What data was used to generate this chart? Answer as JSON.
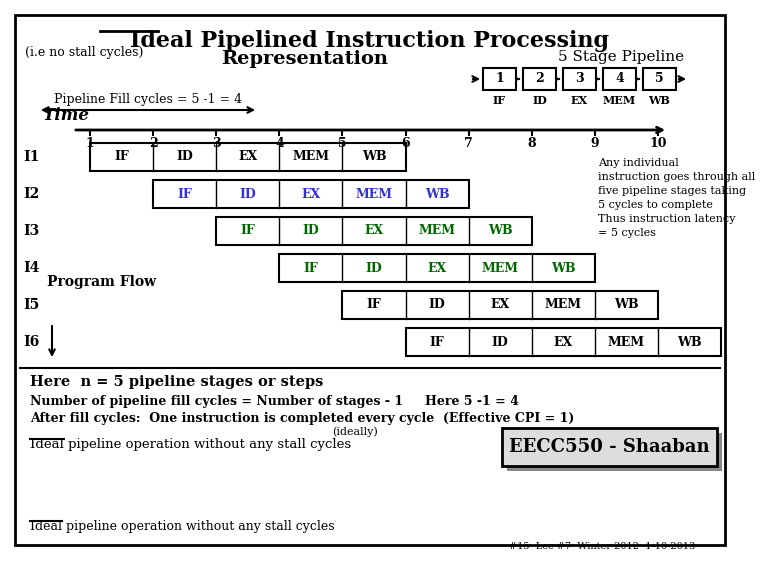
{
  "title_line1": "Ideal Pipelined Instruction Processing",
  "subtitle_left": "(i.e no stall cycles)",
  "subtitle_right": "5 Stage Pipeline",
  "title_line2": "Representation",
  "bg_color": "#ffffff",
  "pipeline_stages": [
    "IF",
    "ID",
    "EX",
    "MEM",
    "WB"
  ],
  "pipeline_nums": [
    "1",
    "2",
    "3",
    "4",
    "5"
  ],
  "instructions": [
    "I1",
    "I2",
    "I3",
    "I4",
    "I5",
    "I6"
  ],
  "instr_start_cycles": [
    1,
    2,
    3,
    4,
    5,
    6
  ],
  "time_ticks": [
    1,
    2,
    3,
    4,
    5,
    6,
    7,
    8,
    9,
    10
  ],
  "instr_colors": {
    "I1": "#000000",
    "I2": "#3333cc",
    "I3": "#006600",
    "I4": "#006600",
    "I5": "#000000",
    "I6": "#000000"
  },
  "note_text": "Any individual\ninstruction goes through all\nfive pipeline stages taking\n5 cycles to complete\nThus instruction latency\n= 5 cycles",
  "fill_cycles_text": "Pipeline Fill cycles = 5 -1 = 4",
  "bottom_text1": "Here  n = 5 pipeline stages or steps",
  "bottom_text2": "Number of pipeline fill cycles = Number of stages - 1     Here 5 -1 = 4",
  "bottom_text3": "After fill cycles:  One instruction is completed every cycle  (Effective CPI = 1)",
  "bottom_text3b": "(ideally)",
  "bottom_text4": "Ideal pipeline operation without any stall cycles",
  "watermark": "EECC550 - Shaaban",
  "footer": "#15  Lec #7  Winter 2012  1-10-2013",
  "program_flow_text": "Program Flow"
}
